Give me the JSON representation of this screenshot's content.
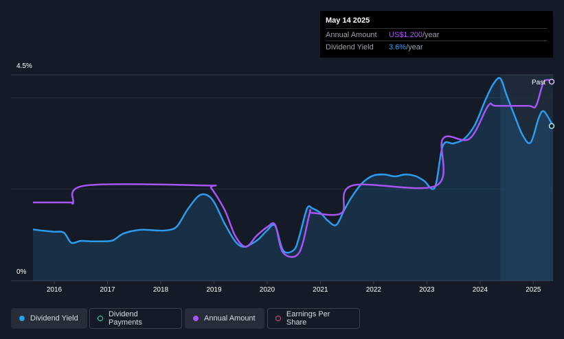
{
  "tooltip": {
    "date": "May 14 2025",
    "rows": [
      {
        "label": "Annual Amount",
        "value": "US$1.200",
        "unit": "/year"
      },
      {
        "label": "Dividend Yield",
        "value": "3.6%",
        "unit": "/year"
      }
    ]
  },
  "past_label": "Past",
  "legend": [
    {
      "label": "Dividend Yield",
      "color": "#2d9cf0",
      "filled": true
    },
    {
      "label": "Dividend Payments",
      "color": "#2dd4bf",
      "filled": false
    },
    {
      "label": "Annual Amount",
      "color": "#a855f7",
      "filled": true
    },
    {
      "label": "Earnings Per Share",
      "color": "#e0457b",
      "filled": false
    }
  ],
  "colors": {
    "background": "#151b26",
    "yield_line": "#2d9cf0",
    "amount_line": "#a855f7",
    "forecast_shade": "#1c2a3a"
  },
  "chart_data": {
    "type": "line",
    "y_tick_labels": [
      "4.5%",
      "0%"
    ],
    "ylim": [
      0,
      4.5
    ],
    "x_tick_labels": [
      "2016",
      "2017",
      "2018",
      "2019",
      "2020",
      "2021",
      "2022",
      "2023",
      "2024",
      "2025"
    ],
    "x_ticks": [
      2016,
      2017,
      2018,
      2019,
      2020,
      2021,
      2022,
      2023,
      2024,
      2025
    ],
    "xlim": [
      2015.6,
      2025.37
    ],
    "grid": true,
    "series": [
      {
        "name": "Dividend Yield",
        "x": [
          2015.6,
          2015.8,
          2016.0,
          2016.18,
          2016.32,
          2016.5,
          2016.7,
          2016.9,
          2017.1,
          2017.3,
          2017.6,
          2017.9,
          2018.1,
          2018.3,
          2018.5,
          2018.7,
          2018.85,
          2019.0,
          2019.2,
          2019.4,
          2019.55,
          2019.7,
          2019.85,
          2020.0,
          2020.15,
          2020.3,
          2020.5,
          2020.6,
          2020.75,
          2020.85,
          2021.0,
          2021.15,
          2021.3,
          2021.45,
          2021.6,
          2021.8,
          2022.0,
          2022.2,
          2022.4,
          2022.6,
          2022.8,
          2022.95,
          2023.15,
          2023.3,
          2023.5,
          2023.7,
          2023.9,
          2024.1,
          2024.25,
          2024.38,
          2024.5,
          2024.65,
          2024.8,
          2024.95,
          2025.1,
          2025.2,
          2025.37
        ],
        "values": [
          1.12,
          1.09,
          1.07,
          1.05,
          0.83,
          0.87,
          0.86,
          0.86,
          0.88,
          1.03,
          1.11,
          1.1,
          1.1,
          1.18,
          1.55,
          1.84,
          1.88,
          1.72,
          1.25,
          0.86,
          0.74,
          0.8,
          0.92,
          1.1,
          1.2,
          0.66,
          0.67,
          0.95,
          1.58,
          1.58,
          1.48,
          1.3,
          1.22,
          1.55,
          1.85,
          2.15,
          2.3,
          2.32,
          2.28,
          2.32,
          2.28,
          2.18,
          2.04,
          2.95,
          3.0,
          3.1,
          3.4,
          3.95,
          4.3,
          4.42,
          4.05,
          3.6,
          3.18,
          3.02,
          3.55,
          3.7,
          3.38
        ]
      },
      {
        "name": "Annual Amount",
        "x": [
          2015.6,
          2016.3,
          2016.35,
          2016.6,
          2018.85,
          2018.95,
          2019.2,
          2019.4,
          2019.6,
          2019.8,
          2020.0,
          2020.15,
          2020.3,
          2020.6,
          2020.8,
          2020.85,
          2021.4,
          2021.6,
          2023.18,
          2023.3,
          2023.8,
          2024.15,
          2024.3,
          2024.9,
          2025.05,
          2025.2,
          2025.37
        ],
        "values": [
          1.71,
          1.71,
          1.71,
          2.08,
          2.08,
          2.02,
          1.55,
          0.98,
          0.74,
          0.98,
          1.17,
          1.22,
          0.61,
          0.61,
          1.48,
          1.48,
          1.48,
          2.08,
          2.08,
          3.1,
          3.1,
          3.82,
          3.82,
          3.82,
          3.82,
          4.35,
          4.35
        ]
      }
    ],
    "forecast_start": 2024.38
  }
}
